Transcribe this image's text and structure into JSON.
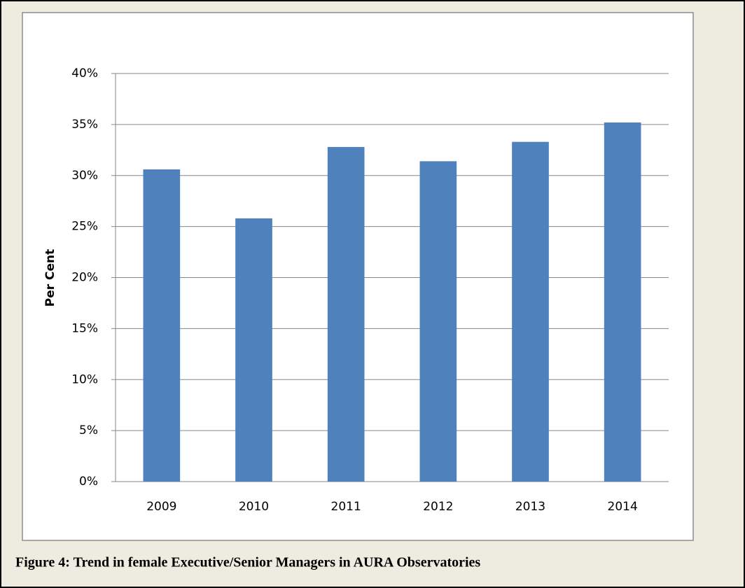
{
  "chart_data": {
    "type": "bar",
    "caption": "Figure 4: Trend in female Executive/Senior Managers in AURA Observatories",
    "y_label": "Per Cent",
    "categories": [
      "2009",
      "2010",
      "2011",
      "2012",
      "2013",
      "2014"
    ],
    "values": [
      30.6,
      25.8,
      32.8,
      31.4,
      33.3,
      35.2
    ],
    "color": "#4f81bd",
    "ylim": [
      0,
      40
    ],
    "yticks": [
      {
        "value": 0,
        "label": "0%"
      },
      {
        "value": 5,
        "label": "5%"
      },
      {
        "value": 10,
        "label": "10%"
      },
      {
        "value": 15,
        "label": "15%"
      },
      {
        "value": 20,
        "label": "20%"
      },
      {
        "value": 25,
        "label": "25%"
      },
      {
        "value": 30,
        "label": "30%"
      },
      {
        "value": 35,
        "label": "35%"
      },
      {
        "value": 40,
        "label": "40%"
      }
    ],
    "grid": true
  }
}
